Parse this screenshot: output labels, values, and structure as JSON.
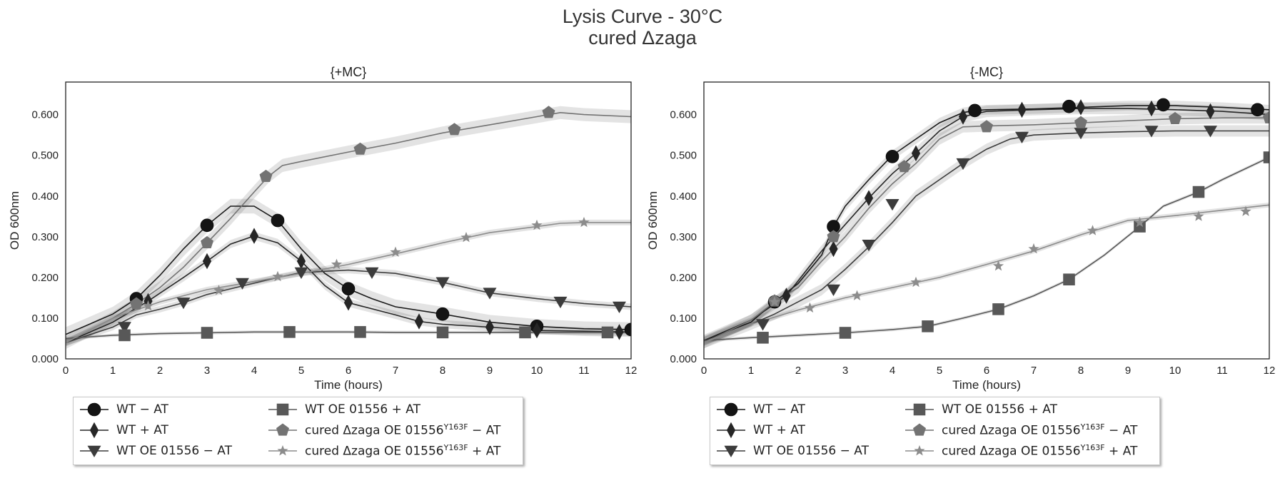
{
  "figure": {
    "title_line1": "Lysis Curve - 30°C",
    "title_line2": "cured Δzaga"
  },
  "series_styles": [
    {
      "key": "wt_minus",
      "marker": "circle",
      "fill": "#141414",
      "line": "#1a1a1a",
      "label": "WT  − AT",
      "sup": "",
      "suffix": ""
    },
    {
      "key": "wt_plus",
      "marker": "diamond",
      "fill": "#262626",
      "line": "#262626",
      "label": "WT  + AT",
      "sup": "",
      "suffix": ""
    },
    {
      "key": "oe_minus",
      "marker": "triangle",
      "fill": "#3c3c3c",
      "line": "#3c3c3c",
      "label": "WT OE 01556  − AT",
      "sup": "",
      "suffix": ""
    },
    {
      "key": "oe_plus",
      "marker": "square",
      "fill": "#585858",
      "line": "#585858",
      "label": "WT OE 01556  + AT",
      "sup": "",
      "suffix": ""
    },
    {
      "key": "cured_minus",
      "marker": "pentagon",
      "fill": "#737373",
      "line": "#737373",
      "label": "cured Δzaga OE 01556",
      "sup": "Y163F",
      "suffix": " − AT"
    },
    {
      "key": "cured_plus",
      "marker": "star",
      "fill": "#8c8c8c",
      "line": "#8c8c8c",
      "label": "cured Δzaga OE 01556",
      "sup": "Y163F",
      "suffix": " + AT"
    }
  ],
  "chart_data": [
    {
      "type": "line",
      "title": "{+MC}",
      "xlabel": "Time (hours)",
      "ylabel": "OD 600nm",
      "xlim": [
        0,
        12
      ],
      "ylim": [
        0,
        0.68
      ],
      "xticks": [
        0,
        1,
        2,
        3,
        4,
        5,
        6,
        7,
        8,
        9,
        10,
        11,
        12
      ],
      "yticks": [
        0,
        0.1,
        0.2,
        0.3,
        0.4,
        0.5,
        0.6
      ],
      "ytick_labels": [
        "0.000",
        "0.100",
        "0.200",
        "0.300",
        "0.400",
        "0.500",
        "0.600"
      ],
      "grid": false,
      "legend": "below-left",
      "series": [
        {
          "name": "WT  − AT",
          "x": [
            0,
            1,
            1.5,
            2,
            2.5,
            3,
            3.5,
            4,
            4.5,
            5,
            5.5,
            6,
            6.5,
            7,
            8,
            9,
            10,
            11,
            12
          ],
          "y": [
            0.06,
            0.11,
            0.148,
            0.205,
            0.27,
            0.328,
            0.375,
            0.375,
            0.34,
            0.27,
            0.21,
            0.172,
            0.148,
            0.128,
            0.11,
            0.09,
            0.08,
            0.074,
            0.072
          ],
          "markers_x": [
            1.5,
            3,
            4.5,
            6,
            8,
            10,
            12
          ],
          "markers_y": [
            0.148,
            0.328,
            0.34,
            0.172,
            0.11,
            0.08,
            0.072
          ],
          "band": 0.018
        },
        {
          "name": "WT  + AT",
          "x": [
            0,
            1,
            1.75,
            2.5,
            3,
            3.5,
            4,
            4.5,
            5,
            5.5,
            6,
            7,
            7.5,
            8,
            9,
            10,
            11,
            12
          ],
          "y": [
            0.04,
            0.09,
            0.142,
            0.2,
            0.24,
            0.282,
            0.302,
            0.285,
            0.24,
            0.18,
            0.138,
            0.108,
            0.092,
            0.085,
            0.078,
            0.07,
            0.068,
            0.066
          ],
          "markers_x": [
            1.75,
            3,
            4,
            5,
            6,
            7.5,
            9,
            10,
            11.75
          ],
          "markers_y": [
            0.142,
            0.24,
            0.302,
            0.24,
            0.138,
            0.092,
            0.078,
            0.07,
            0.066
          ],
          "band": 0.01
        },
        {
          "name": "WT OE 01556  − AT",
          "x": [
            0,
            1,
            1.5,
            2,
            2.5,
            3,
            3.5,
            4,
            4.5,
            5,
            6,
            7,
            8,
            9,
            10,
            11,
            12
          ],
          "y": [
            0.04,
            0.078,
            0.108,
            0.122,
            0.138,
            0.158,
            0.172,
            0.186,
            0.2,
            0.212,
            0.218,
            0.21,
            0.188,
            0.162,
            0.148,
            0.136,
            0.128
          ],
          "markers_x": [
            1.25,
            2.5,
            3.75,
            5,
            6.5,
            8,
            9,
            10.5,
            11.75
          ],
          "markers_y": [
            0.078,
            0.138,
            0.186,
            0.212,
            0.212,
            0.188,
            0.162,
            0.14,
            0.128
          ],
          "band": 0.008
        },
        {
          "name": "WT OE 01556  + AT",
          "x": [
            0,
            1,
            2,
            3,
            4,
            5,
            6,
            7,
            8,
            9,
            10,
            11,
            12
          ],
          "y": [
            0.05,
            0.058,
            0.062,
            0.064,
            0.066,
            0.066,
            0.066,
            0.065,
            0.065,
            0.065,
            0.065,
            0.065,
            0.065
          ],
          "markers_x": [
            1.25,
            3,
            4.75,
            6.25,
            8,
            9.75,
            11.5
          ],
          "markers_y": [
            0.058,
            0.064,
            0.066,
            0.066,
            0.065,
            0.065,
            0.065
          ],
          "band": 0.004
        },
        {
          "name": "cured Δzaga OE 01556 Y163F − AT",
          "x": [
            0,
            1,
            1.5,
            2,
            2.5,
            3,
            3.5,
            4,
            4.3,
            4.6,
            5,
            6,
            7,
            8,
            9,
            10,
            10.5,
            11,
            12
          ],
          "y": [
            0.04,
            0.1,
            0.135,
            0.175,
            0.225,
            0.285,
            0.345,
            0.41,
            0.448,
            0.475,
            0.485,
            0.508,
            0.53,
            0.555,
            0.575,
            0.595,
            0.605,
            0.6,
            0.595
          ],
          "markers_x": [
            1.5,
            3,
            4.25,
            6.25,
            8.25,
            10.25
          ],
          "markers_y": [
            0.135,
            0.285,
            0.448,
            0.515,
            0.563,
            0.605
          ],
          "band": 0.016
        },
        {
          "name": "cured Δzaga OE 01556 Y163F + AT",
          "x": [
            0,
            1,
            2,
            3,
            4,
            5,
            6,
            7,
            8,
            9,
            10,
            10.5,
            11,
            12
          ],
          "y": [
            0.04,
            0.1,
            0.14,
            0.17,
            0.19,
            0.21,
            0.232,
            0.258,
            0.285,
            0.31,
            0.325,
            0.333,
            0.335,
            0.335
          ],
          "markers_x": [
            1.75,
            3.25,
            4.5,
            5.75,
            7,
            8.5,
            10,
            11
          ],
          "markers_y": [
            0.13,
            0.168,
            0.202,
            0.232,
            0.262,
            0.298,
            0.328,
            0.335
          ],
          "band": 0.007
        }
      ]
    },
    {
      "type": "line",
      "title": "{-MC}",
      "xlabel": "Time (hours)",
      "ylabel": "OD 600nm",
      "xlim": [
        0,
        12
      ],
      "ylim": [
        0,
        0.68
      ],
      "xticks": [
        0,
        1,
        2,
        3,
        4,
        5,
        6,
        7,
        8,
        9,
        10,
        11,
        12
      ],
      "yticks": [
        0,
        0.1,
        0.2,
        0.3,
        0.4,
        0.5,
        0.6
      ],
      "ytick_labels": [
        "0.000",
        "0.100",
        "0.200",
        "0.300",
        "0.400",
        "0.500",
        "0.600"
      ],
      "grid": false,
      "legend": "below-left",
      "series": [
        {
          "name": "WT  − AT",
          "x": [
            0,
            1,
            1.5,
            2,
            2.5,
            2.75,
            3,
            3.5,
            4,
            4.5,
            5,
            5.5,
            5.75,
            6,
            7,
            8,
            9,
            10,
            11,
            12
          ],
          "y": [
            0.045,
            0.09,
            0.14,
            0.185,
            0.255,
            0.325,
            0.375,
            0.44,
            0.5,
            0.54,
            0.58,
            0.605,
            0.61,
            0.612,
            0.614,
            0.618,
            0.622,
            0.622,
            0.618,
            0.612
          ],
          "markers_x": [
            1.5,
            2.75,
            4,
            5.75,
            7.75,
            9.75,
            11.75
          ],
          "markers_y": [
            0.14,
            0.325,
            0.497,
            0.61,
            0.62,
            0.624,
            0.612
          ],
          "band": 0.012
        },
        {
          "name": "WT  + AT",
          "x": [
            0,
            1,
            1.75,
            2.5,
            3,
            3.5,
            4,
            4.5,
            5,
            5.5,
            6,
            7,
            8,
            9,
            10,
            11,
            12
          ],
          "y": [
            0.045,
            0.095,
            0.155,
            0.265,
            0.33,
            0.395,
            0.455,
            0.505,
            0.56,
            0.595,
            0.608,
            0.612,
            0.615,
            0.615,
            0.612,
            0.608,
            0.6
          ],
          "markers_x": [
            1.75,
            2.75,
            3.5,
            4.5,
            5.5,
            6.75,
            8,
            9.5,
            10.75
          ],
          "markers_y": [
            0.155,
            0.27,
            0.395,
            0.505,
            0.595,
            0.612,
            0.618,
            0.615,
            0.608
          ],
          "band": 0.014
        },
        {
          "name": "WT OE 01556  − AT",
          "x": [
            0,
            1,
            1.5,
            2,
            2.5,
            3,
            3.5,
            4,
            4.5,
            5,
            5.5,
            6,
            6.5,
            7,
            8,
            9,
            10,
            11,
            12
          ],
          "y": [
            0.04,
            0.085,
            0.11,
            0.14,
            0.17,
            0.22,
            0.275,
            0.335,
            0.4,
            0.44,
            0.48,
            0.515,
            0.54,
            0.55,
            0.555,
            0.558,
            0.56,
            0.56,
            0.56
          ],
          "markers_x": [
            1.25,
            2.75,
            3.5,
            4,
            5.5,
            6.75,
            8,
            9.5,
            10.75
          ],
          "markers_y": [
            0.085,
            0.17,
            0.28,
            0.38,
            0.48,
            0.545,
            0.555,
            0.56,
            0.56
          ],
          "band": 0.014
        },
        {
          "name": "WT OE 01556  + AT",
          "x": [
            0,
            1,
            2,
            3,
            4,
            4.75,
            5.5,
            6.25,
            7,
            7.75,
            8.5,
            9.25,
            9.75,
            10.5,
            11,
            12
          ],
          "y": [
            0.045,
            0.052,
            0.058,
            0.064,
            0.072,
            0.08,
            0.1,
            0.122,
            0.155,
            0.195,
            0.255,
            0.325,
            0.375,
            0.41,
            0.44,
            0.495
          ],
          "markers_x": [
            1.25,
            3,
            4.75,
            6.25,
            7.75,
            9.25,
            10.5,
            12
          ],
          "markers_y": [
            0.052,
            0.064,
            0.08,
            0.122,
            0.195,
            0.325,
            0.41,
            0.495
          ],
          "band": 0.004
        },
        {
          "name": "cured Δzaga OE 01556 Y163F − AT",
          "x": [
            0,
            1,
            1.5,
            2,
            2.5,
            3,
            3.5,
            4,
            4.5,
            5,
            5.5,
            6,
            7,
            8,
            9,
            10,
            11,
            12
          ],
          "y": [
            0.04,
            0.095,
            0.14,
            0.175,
            0.24,
            0.3,
            0.37,
            0.43,
            0.48,
            0.54,
            0.57,
            0.572,
            0.575,
            0.58,
            0.585,
            0.59,
            0.592,
            0.592
          ],
          "markers_x": [
            1.5,
            2.75,
            4.25,
            6,
            8,
            10,
            12
          ],
          "markers_y": [
            0.142,
            0.3,
            0.472,
            0.57,
            0.58,
            0.59,
            0.592
          ],
          "band": 0.014
        },
        {
          "name": "cured Δzaga OE 01556 Y163F + AT",
          "x": [
            0,
            1,
            2,
            3,
            4,
            5,
            6,
            7,
            8,
            9,
            10,
            11,
            12
          ],
          "y": [
            0.04,
            0.085,
            0.12,
            0.15,
            0.175,
            0.2,
            0.232,
            0.265,
            0.305,
            0.34,
            0.352,
            0.365,
            0.378
          ],
          "markers_x": [
            1.5,
            2.25,
            3.25,
            4.5,
            6.25,
            7,
            8.25,
            9.25,
            10.5,
            11.5
          ],
          "markers_y": [
            0.14,
            0.125,
            0.155,
            0.188,
            0.228,
            0.27,
            0.315,
            0.335,
            0.35,
            0.362
          ],
          "band": 0.006
        }
      ]
    }
  ]
}
